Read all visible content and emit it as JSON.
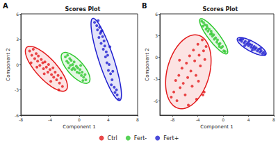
{
  "chart_data": [
    {
      "type": "scatter",
      "title": "Scores Plot",
      "annotations": [
        "A"
      ],
      "x_label": "Component 1",
      "y_label": "Component 2",
      "xlim": [
        -8,
        8
      ],
      "xticks": [
        -8,
        -4,
        0,
        4,
        8
      ],
      "ylim": [
        -6,
        6
      ],
      "yticks": [
        -6,
        -3,
        0,
        3,
        6
      ],
      "grid": false,
      "legend": "bottom",
      "marker": "circle",
      "series": [
        {
          "name": "Ctrl",
          "color": "#e31a1c",
          "values": [
            [
              -6.8,
              1.6
            ],
            [
              -6.5,
              1.1
            ],
            [
              -6.3,
              1.8
            ],
            [
              -6.1,
              0.7
            ],
            [
              -5.9,
              1.3
            ],
            [
              -5.7,
              0.4
            ],
            [
              -5.6,
              1.0
            ],
            [
              -5.4,
              -0.1
            ],
            [
              -5.2,
              0.6
            ],
            [
              -5.0,
              0.2
            ],
            [
              -4.9,
              -0.5
            ],
            [
              -4.7,
              0.3
            ],
            [
              -4.5,
              -0.3
            ],
            [
              -4.3,
              -0.9
            ],
            [
              -4.2,
              0.0
            ],
            [
              -4.0,
              -0.6
            ],
            [
              -3.8,
              -1.2
            ],
            [
              -3.6,
              -0.4
            ],
            [
              -3.5,
              -1.5
            ],
            [
              -3.3,
              -0.9
            ],
            [
              -3.1,
              -1.8
            ],
            [
              -2.9,
              -1.3
            ],
            [
              -2.7,
              -2.2
            ],
            [
              -2.5,
              -1.6
            ],
            [
              -2.3,
              -2.6
            ],
            [
              -4.8,
              -1.1
            ],
            [
              -5.8,
              -0.3
            ],
            [
              -3.9,
              -2.0
            ],
            [
              -6.6,
              0.2
            ],
            [
              -2.8,
              -3.0
            ]
          ],
          "ellipse": {
            "center": [
              -4.5,
              -0.5
            ],
            "radii": [
              3.7,
              1.3
            ],
            "angle": -42
          }
        },
        {
          "name": "Fert-",
          "color": "#2fc82f",
          "values": [
            [
              -1.9,
              0.9
            ],
            [
              -1.7,
              0.4
            ],
            [
              -1.6,
              1.1
            ],
            [
              -1.5,
              0.2
            ],
            [
              -1.3,
              0.7
            ],
            [
              -1.2,
              -0.1
            ],
            [
              -1.1,
              0.5
            ],
            [
              -0.9,
              0.0
            ],
            [
              -0.8,
              -0.4
            ],
            [
              -0.7,
              0.3
            ],
            [
              -0.6,
              -0.6
            ],
            [
              -0.4,
              -0.2
            ],
            [
              -0.3,
              -0.9
            ],
            [
              -0.2,
              -0.4
            ],
            [
              0.0,
              -1.0
            ],
            [
              0.1,
              -0.6
            ],
            [
              0.3,
              -1.3
            ],
            [
              0.4,
              -0.9
            ],
            [
              0.6,
              -1.5
            ],
            [
              0.8,
              -1.2
            ],
            [
              0.9,
              -1.8
            ],
            [
              -1.0,
              -0.6
            ],
            [
              0.2,
              -0.1
            ],
            [
              -1.4,
              -0.4
            ],
            [
              0.5,
              -1.9
            ]
          ],
          "ellipse": {
            "center": [
              -0.5,
              -0.4
            ],
            "radii": [
              2.5,
              1.0
            ],
            "angle": -42
          }
        },
        {
          "name": "Fert+",
          "color": "#1f1fd0",
          "values": [
            [
              2.1,
              5.0
            ],
            [
              2.4,
              4.6
            ],
            [
              2.6,
              5.2
            ],
            [
              2.5,
              4.1
            ],
            [
              2.8,
              4.4
            ],
            [
              2.9,
              3.7
            ],
            [
              3.1,
              4.0
            ],
            [
              2.7,
              3.2
            ],
            [
              3.2,
              3.3
            ],
            [
              3.4,
              2.8
            ],
            [
              3.0,
              2.5
            ],
            [
              3.5,
              2.2
            ],
            [
              3.3,
              1.8
            ],
            [
              3.7,
              1.5
            ],
            [
              3.6,
              0.9
            ],
            [
              3.9,
              1.1
            ],
            [
              3.8,
              0.2
            ],
            [
              4.1,
              0.0
            ],
            [
              4.0,
              -0.7
            ],
            [
              4.3,
              -1.1
            ],
            [
              4.5,
              -1.8
            ],
            [
              4.4,
              -2.4
            ],
            [
              4.8,
              -2.7
            ],
            [
              4.9,
              -3.3
            ],
            [
              5.2,
              -3.6
            ],
            [
              5.4,
              -4.1
            ],
            [
              4.2,
              2.1
            ],
            [
              3.0,
              3.9
            ],
            [
              4.6,
              -0.8
            ],
            [
              5.1,
              -3.0
            ]
          ],
          "ellipse": {
            "center": [
              3.7,
              0.6
            ],
            "radii": [
              5.2,
              1.0
            ],
            "angle": -69
          }
        }
      ]
    },
    {
      "type": "scatter",
      "title": "Scores Plot",
      "annotations": [
        "B"
      ],
      "x_label": "Component 1",
      "y_label": "Component 2",
      "xlim": [
        -10,
        8
      ],
      "xticks": [
        -8,
        -4,
        0,
        4,
        8
      ],
      "ylim": [
        -8,
        6
      ],
      "yticks": [
        -6,
        -3,
        0,
        3,
        6
      ],
      "grid": false,
      "legend": "bottom",
      "marker": "circle",
      "series": [
        {
          "name": "Ctrl",
          "color": "#e31a1c",
          "values": [
            [
              -8.2,
              -5.5
            ],
            [
              -7.8,
              -4.8
            ],
            [
              -7.5,
              -3.2
            ],
            [
              -7.3,
              -6.0
            ],
            [
              -7.0,
              -2.5
            ],
            [
              -6.8,
              -4.2
            ],
            [
              -6.5,
              -1.5
            ],
            [
              -6.3,
              -3.6
            ],
            [
              -6.0,
              -5.2
            ],
            [
              -5.8,
              -0.8
            ],
            [
              -5.6,
              -2.8
            ],
            [
              -5.3,
              0.2
            ],
            [
              -5.1,
              -1.9
            ],
            [
              -4.9,
              -4.0
            ],
            [
              -4.7,
              1.0
            ],
            [
              -4.5,
              -0.5
            ],
            [
              -4.3,
              -2.5
            ],
            [
              -4.0,
              1.8
            ],
            [
              -3.8,
              0.3
            ],
            [
              -3.6,
              -1.2
            ],
            [
              -3.3,
              2.4
            ],
            [
              -3.1,
              0.9
            ],
            [
              -2.9,
              -0.3
            ],
            [
              -2.7,
              1.5
            ],
            [
              -4.2,
              -5.8
            ],
            [
              -3.2,
              -5.2
            ],
            [
              -3.0,
              -4.8
            ],
            [
              -5.5,
              -6.6
            ],
            [
              -6.9,
              -0.4
            ],
            [
              -3.9,
              -3.3
            ]
          ],
          "ellipse": {
            "center": [
              -5.5,
              -2.0
            ],
            "radii": [
              5.3,
              3.3
            ],
            "angle": 70
          }
        },
        {
          "name": "Fert-",
          "color": "#2fc82f",
          "values": [
            [
              -3.4,
              5.0
            ],
            [
              -3.1,
              4.8
            ],
            [
              -3.2,
              4.3
            ],
            [
              -2.9,
              4.5
            ],
            [
              -2.7,
              3.9
            ],
            [
              -2.6,
              4.4
            ],
            [
              -2.4,
              3.6
            ],
            [
              -2.2,
              3.9
            ],
            [
              -2.0,
              3.2
            ],
            [
              -1.9,
              3.6
            ],
            [
              -1.7,
              2.9
            ],
            [
              -1.5,
              3.1
            ],
            [
              -1.4,
              2.5
            ],
            [
              -1.2,
              2.7
            ],
            [
              -1.0,
              2.1
            ],
            [
              -0.9,
              2.4
            ],
            [
              -0.7,
              1.8
            ],
            [
              -0.5,
              1.9
            ],
            [
              -0.3,
              1.3
            ],
            [
              -0.1,
              1.5
            ],
            [
              0.1,
              0.9
            ],
            [
              0.3,
              0.8
            ],
            [
              -2.5,
              4.1
            ],
            [
              -1.8,
              3.3
            ],
            [
              -0.6,
              1.5
            ]
          ],
          "ellipse": {
            "center": [
              -1.5,
              2.9
            ],
            "radii": [
              3.2,
              0.8
            ],
            "angle": -48
          }
        },
        {
          "name": "Fert+",
          "color": "#1f1fd0",
          "values": [
            [
              2.6,
              2.4
            ],
            [
              2.9,
              2.2
            ],
            [
              3.1,
              2.5
            ],
            [
              3.3,
              2.0
            ],
            [
              3.5,
              2.2
            ],
            [
              3.7,
              1.8
            ],
            [
              3.9,
              2.0
            ],
            [
              4.0,
              1.6
            ],
            [
              4.2,
              1.8
            ],
            [
              4.4,
              1.4
            ],
            [
              4.5,
              1.7
            ],
            [
              4.7,
              1.3
            ],
            [
              4.9,
              1.5
            ],
            [
              5.0,
              1.1
            ],
            [
              5.2,
              1.3
            ],
            [
              5.4,
              0.9
            ],
            [
              5.6,
              1.1
            ],
            [
              5.8,
              0.7
            ],
            [
              6.0,
              0.9
            ],
            [
              6.2,
              0.5
            ],
            [
              6.4,
              0.7
            ],
            [
              6.6,
              0.4
            ],
            [
              3.4,
              1.6
            ],
            [
              4.6,
              1.0
            ],
            [
              5.9,
              1.2
            ],
            [
              2.8,
              2.5
            ],
            [
              4.1,
              2.2
            ]
          ],
          "ellipse": {
            "center": [
              4.5,
              1.5
            ],
            "radii": [
              2.5,
              0.7
            ],
            "angle": -25
          }
        }
      ]
    }
  ]
}
